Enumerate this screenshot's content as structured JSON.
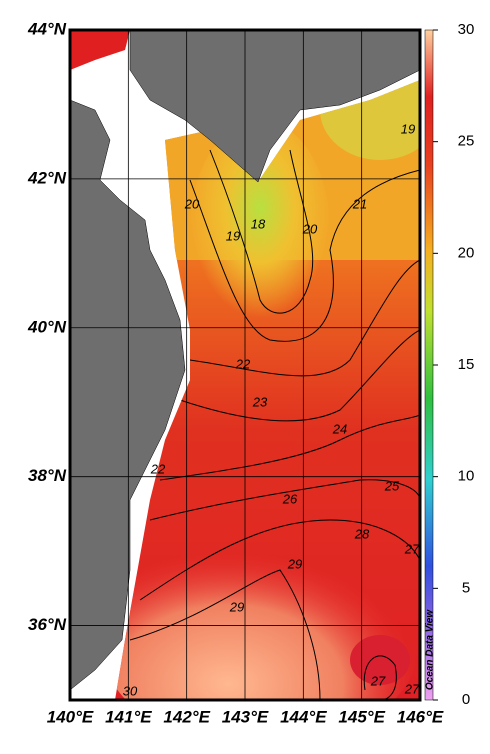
{
  "map": {
    "lon_range": [
      140,
      146
    ],
    "lat_range": [
      35,
      44
    ],
    "lon_ticks": [
      {
        "value": 140,
        "label": "140°E"
      },
      {
        "value": 141,
        "label": "141°E"
      },
      {
        "value": 142,
        "label": "142°E"
      },
      {
        "value": 143,
        "label": "143°E"
      },
      {
        "value": 144,
        "label": "144°E"
      },
      {
        "value": 145,
        "label": "145°E"
      },
      {
        "value": 146,
        "label": "146°E"
      }
    ],
    "lat_ticks": [
      {
        "value": 44,
        "label": "44°N"
      },
      {
        "value": 42,
        "label": "42°N"
      },
      {
        "value": 40,
        "label": "40°N"
      },
      {
        "value": 38,
        "label": "38°N"
      },
      {
        "value": 36,
        "label": "36°N"
      }
    ],
    "colorbar": {
      "range": [
        0,
        30
      ],
      "ticks": [
        0,
        5,
        10,
        15,
        20,
        25,
        30
      ]
    },
    "contour_labels": [
      19,
      20,
      18,
      19,
      20,
      21,
      22,
      23,
      24,
      22,
      25,
      26,
      28,
      27,
      29,
      29,
      27,
      30,
      27
    ],
    "watermark": "Ocean Data View"
  }
}
